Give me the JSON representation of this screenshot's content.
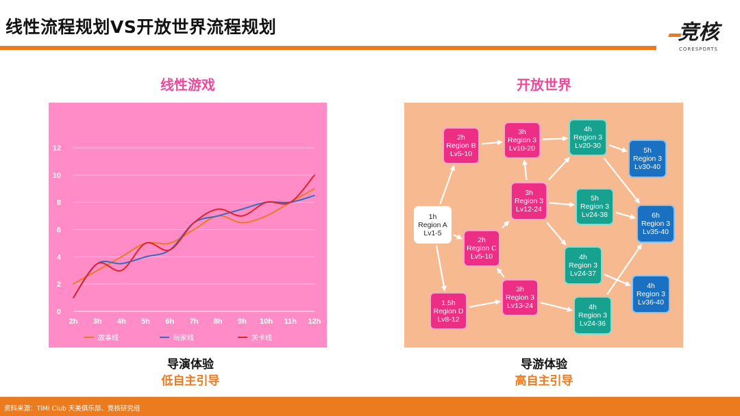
{
  "header": {
    "title": "线性流程规划VS开放世界流程规划",
    "logo_text": "竞核",
    "logo_subtext": "CORESPORTS"
  },
  "left_panel": {
    "title": "线性游戏",
    "caption_1": "导演体验",
    "caption_2": "低自主引导"
  },
  "right_panel": {
    "title": "开放世界",
    "caption_1": "导游体验",
    "caption_2": "高自主引导"
  },
  "chart_data": {
    "type": "line",
    "categories": [
      "2h",
      "3h",
      "4h",
      "5h",
      "6h",
      "7h",
      "8h",
      "9h",
      "10h",
      "11h",
      "12h"
    ],
    "ylim": [
      0,
      12
    ],
    "yticks": [
      "0",
      "2",
      "4",
      "6",
      "8",
      "10",
      "12"
    ],
    "grid": true,
    "legend_position": "bottom",
    "series": [
      {
        "name": "故事线",
        "color": "#ec7a1e",
        "values": [
          2,
          3,
          4,
          5,
          5,
          6,
          7,
          6.5,
          7,
          8,
          9
        ]
      },
      {
        "name": "玩家线",
        "color": "#2f6fc0",
        "values": [
          1,
          3.5,
          3.5,
          4,
          4.5,
          6.5,
          7,
          7.5,
          8,
          8,
          8.5
        ]
      },
      {
        "name": "关卡线",
        "color": "#e0242c",
        "values": [
          1,
          3.5,
          3,
          5,
          4.5,
          6.5,
          7.5,
          7,
          8,
          8,
          10
        ]
      }
    ]
  },
  "flow_map": {
    "nodes": [
      {
        "id": "a",
        "color": "white",
        "time": "1h",
        "region": "Region A",
        "level": "Lv1-5"
      },
      {
        "id": "b",
        "color": "pink",
        "time": "2h",
        "region": "Region B",
        "level": "Lv5-10"
      },
      {
        "id": "c",
        "color": "pink",
        "time": "2h",
        "region": "Region C",
        "level": "Lv5-10"
      },
      {
        "id": "d",
        "color": "pink",
        "time": "1.5h",
        "region": "Region D",
        "level": "Lv8-12"
      },
      {
        "id": "e",
        "color": "pink",
        "time": "3h",
        "region": "Region 3",
        "level": "Lv10-20"
      },
      {
        "id": "f",
        "color": "pink",
        "time": "3h",
        "region": "Region 3",
        "level": "Lv12-24"
      },
      {
        "id": "g",
        "color": "pink",
        "time": "3h",
        "region": "Region 3",
        "level": "Lv13-24"
      },
      {
        "id": "h",
        "color": "green",
        "time": "4h",
        "region": "Region 3",
        "level": "Lv20-30"
      },
      {
        "id": "i",
        "color": "green",
        "time": "5h",
        "region": "Region 3",
        "level": "Lv24-38"
      },
      {
        "id": "j",
        "color": "green",
        "time": "4h",
        "region": "Region 3",
        "level": "Lv24-37"
      },
      {
        "id": "k",
        "color": "green",
        "time": "4h",
        "region": "Region 3",
        "level": "Lv24-36"
      },
      {
        "id": "l",
        "color": "blue",
        "time": "5h",
        "region": "Region 3",
        "level": "Lv30-40"
      },
      {
        "id": "m",
        "color": "blue",
        "time": "6h",
        "region": "Region 3",
        "level": "Lv35-40"
      },
      {
        "id": "n",
        "color": "blue",
        "time": "4h",
        "region": "Region 3",
        "level": "Lv36-40"
      }
    ]
  },
  "footer": {
    "source": "资料来源：TiMi Club 天美俱乐部、竞核研究组"
  }
}
